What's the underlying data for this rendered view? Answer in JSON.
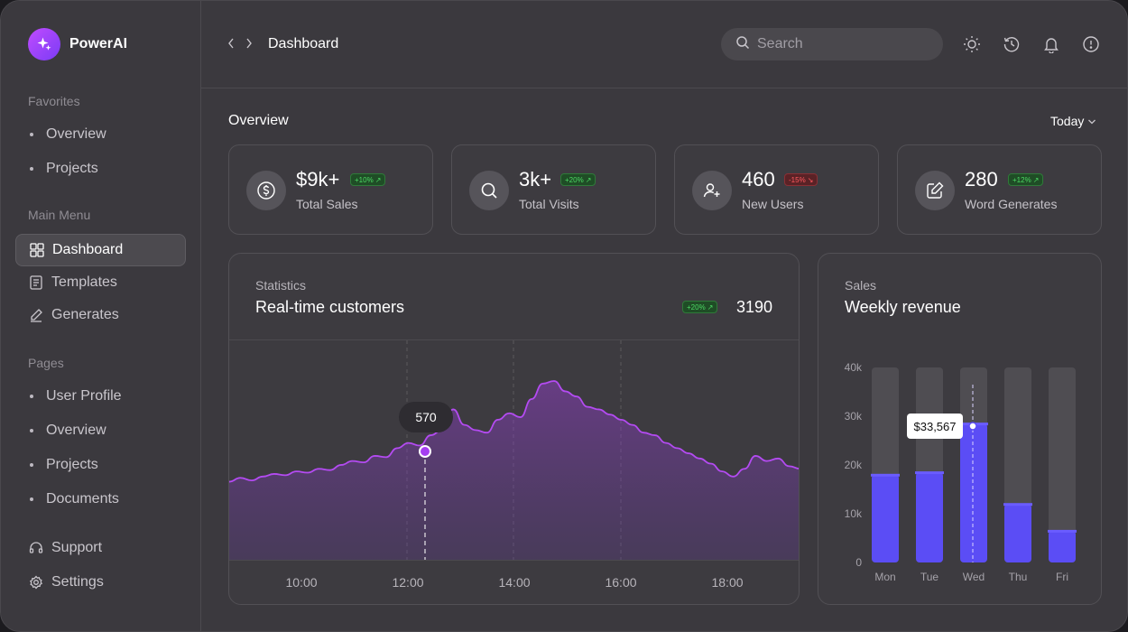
{
  "brand": {
    "name": "PowerAI"
  },
  "sidebar": {
    "favorites_label": "Favorites",
    "favorites": [
      "Overview",
      "Projects"
    ],
    "main_menu_label": "Main Menu",
    "main_menu": [
      {
        "label": "Dashboard",
        "icon": "grid-icon",
        "active": true
      },
      {
        "label": "Templates",
        "icon": "template-icon"
      },
      {
        "label": "Generates",
        "icon": "pen-icon"
      }
    ],
    "pages_label": "Pages",
    "pages": [
      "User Profile",
      "Overview",
      "Projects",
      "Documents"
    ],
    "bottom": [
      {
        "label": "Support",
        "icon": "headset-icon"
      },
      {
        "label": "Settings",
        "icon": "gear-icon"
      }
    ]
  },
  "header": {
    "title": "Dashboard",
    "search_placeholder": "Search"
  },
  "overview": {
    "title": "Overview",
    "period": "Today",
    "cards": [
      {
        "value": "$9k+",
        "label": "Total Sales",
        "badge": "+10%",
        "trend": "up",
        "icon": "dollar-icon"
      },
      {
        "value": "3k+",
        "label": "Total Visits",
        "badge": "+20%",
        "trend": "up",
        "icon": "search-icon"
      },
      {
        "value": "460",
        "label": "New Users",
        "badge": "-15%",
        "trend": "down",
        "icon": "user-add-icon"
      },
      {
        "value": "280",
        "label": "Word Generates",
        "badge": "+12%",
        "trend": "up",
        "icon": "edit-icon"
      }
    ]
  },
  "statistics": {
    "subtitle": "Statistics",
    "title": "Real-time customers",
    "badge": "+20%",
    "total": "3190",
    "tooltip": "570"
  },
  "sales": {
    "subtitle": "Sales",
    "title": "Weekly revenue",
    "tooltip": "$33,567"
  },
  "chart_data": [
    {
      "type": "area",
      "x_ticks": [
        "10:00",
        "12:00",
        "14:00",
        "16:00",
        "18:00"
      ],
      "highlight": {
        "x": "12:20",
        "value": 570
      },
      "series": [
        {
          "values": [
            0.22,
            0.25,
            0.23,
            0.26,
            0.28,
            0.27,
            0.3,
            0.29,
            0.32,
            0.31,
            0.35,
            0.38,
            0.37,
            0.42,
            0.41,
            0.48,
            0.52,
            0.5,
            0.58,
            0.62,
            0.78,
            0.66,
            0.62,
            0.6,
            0.7,
            0.75,
            0.72,
            0.86,
            0.98,
            1.0,
            0.92,
            0.88,
            0.8,
            0.78,
            0.74,
            0.7,
            0.66,
            0.6,
            0.58,
            0.52,
            0.48,
            0.44,
            0.4,
            0.36,
            0.3,
            0.26,
            0.32,
            0.42,
            0.38,
            0.4,
            0.34,
            0.32
          ]
        }
      ],
      "color": "#b44bf2"
    },
    {
      "type": "bar",
      "categories": [
        "Mon",
        "Tue",
        "Wed",
        "Thu",
        "Fri"
      ],
      "values": [
        18000,
        18500,
        28500,
        12000,
        6500
      ],
      "ylim": [
        0,
        40000
      ],
      "y_ticks": [
        "0",
        "10k",
        "20k",
        "30k",
        "40k"
      ],
      "bar_color": "#5b4df5",
      "track_color": "#4f4d52"
    }
  ]
}
